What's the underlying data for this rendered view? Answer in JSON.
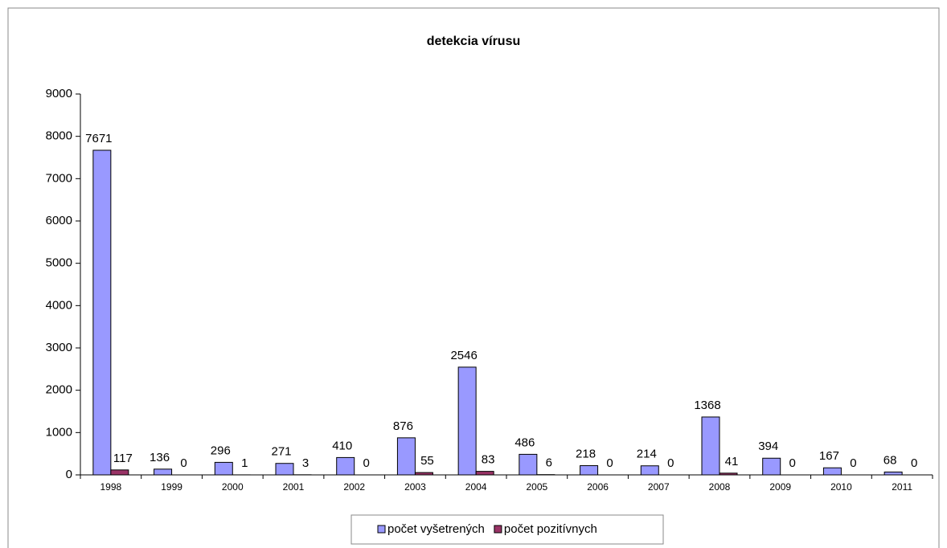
{
  "chart_data": {
    "type": "bar",
    "title": "detekcia vírusu",
    "categories": [
      "1998",
      "1999",
      "2000",
      "2001",
      "2002",
      "2003",
      "2004",
      "2005",
      "2006",
      "2007",
      "2008",
      "2009",
      "2010",
      "2011"
    ],
    "series": [
      {
        "name": "počet vyšetrených",
        "color": "#9999ff",
        "values": [
          7671,
          136,
          296,
          271,
          410,
          876,
          2546,
          486,
          218,
          214,
          1368,
          394,
          167,
          68
        ]
      },
      {
        "name": "počet pozitívnych",
        "color": "#993366",
        "values": [
          117,
          0,
          1,
          3,
          0,
          55,
          83,
          6,
          0,
          0,
          41,
          0,
          0,
          0
        ]
      }
    ],
    "ylim": [
      0,
      9000
    ],
    "yticks": [
      0,
      1000,
      2000,
      3000,
      4000,
      5000,
      6000,
      7000,
      8000,
      9000
    ],
    "legend": "bottom"
  }
}
